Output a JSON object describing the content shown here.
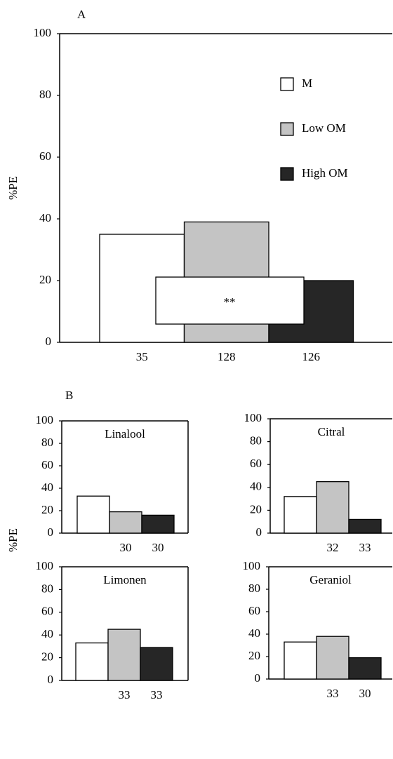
{
  "chart_data": [
    {
      "type": "bar",
      "panel_label": "A",
      "ylabel": "%PE",
      "categories": [
        "35",
        "128",
        "126"
      ],
      "series": [
        {
          "name": "M",
          "color": "#ffffff",
          "values": [
            35,
            null,
            null
          ]
        },
        {
          "name": "Low OM",
          "color": "#c4c4c4",
          "values": [
            null,
            39,
            null
          ]
        },
        {
          "name": "High OM",
          "color": "#262626",
          "values": [
            null,
            null,
            20
          ]
        }
      ],
      "ylim": [
        0,
        100
      ],
      "yticks": [
        0,
        20,
        40,
        60,
        80,
        100
      ],
      "legend": "upper right",
      "annotation": "**"
    },
    {
      "type": "bar",
      "panel_label": "B",
      "ylabel": "%PE",
      "title": "Linalool",
      "categories": [
        null,
        "30",
        "30"
      ],
      "series": [
        {
          "color": "#ffffff",
          "values": [
            33,
            null,
            null
          ]
        },
        {
          "color": "#c4c4c4",
          "values": [
            null,
            19,
            null
          ]
        },
        {
          "color": "#262626",
          "values": [
            null,
            null,
            16
          ]
        }
      ],
      "ylim": [
        0,
        100
      ],
      "yticks": [
        0,
        20,
        40,
        60,
        80,
        100
      ]
    },
    {
      "type": "bar",
      "title": "Citral",
      "categories": [
        null,
        "32",
        "33"
      ],
      "series": [
        {
          "color": "#ffffff",
          "values": [
            32,
            null,
            null
          ]
        },
        {
          "color": "#c4c4c4",
          "values": [
            null,
            45,
            null
          ]
        },
        {
          "color": "#262626",
          "values": [
            null,
            null,
            12
          ]
        }
      ],
      "ylim": [
        0,
        100
      ],
      "yticks": [
        0,
        20,
        40,
        60,
        80,
        100
      ]
    },
    {
      "type": "bar",
      "title": "Limonen",
      "categories": [
        null,
        "33",
        "33"
      ],
      "series": [
        {
          "color": "#ffffff",
          "values": [
            33,
            null,
            null
          ]
        },
        {
          "color": "#c4c4c4",
          "values": [
            null,
            45,
            null
          ]
        },
        {
          "color": "#262626",
          "values": [
            null,
            null,
            29
          ]
        }
      ],
      "ylim": [
        0,
        100
      ],
      "yticks": [
        0,
        20,
        40,
        60,
        80,
        100
      ]
    },
    {
      "type": "bar",
      "title": "Geraniol",
      "categories": [
        null,
        "33",
        "30"
      ],
      "series": [
        {
          "color": "#ffffff",
          "values": [
            33,
            null,
            null
          ]
        },
        {
          "color": "#c4c4c4",
          "values": [
            null,
            38,
            null
          ]
        },
        {
          "color": "#262626",
          "values": [
            null,
            null,
            19
          ]
        }
      ],
      "ylim": [
        0,
        100
      ],
      "yticks": [
        0,
        20,
        40,
        60,
        80,
        100
      ]
    }
  ]
}
